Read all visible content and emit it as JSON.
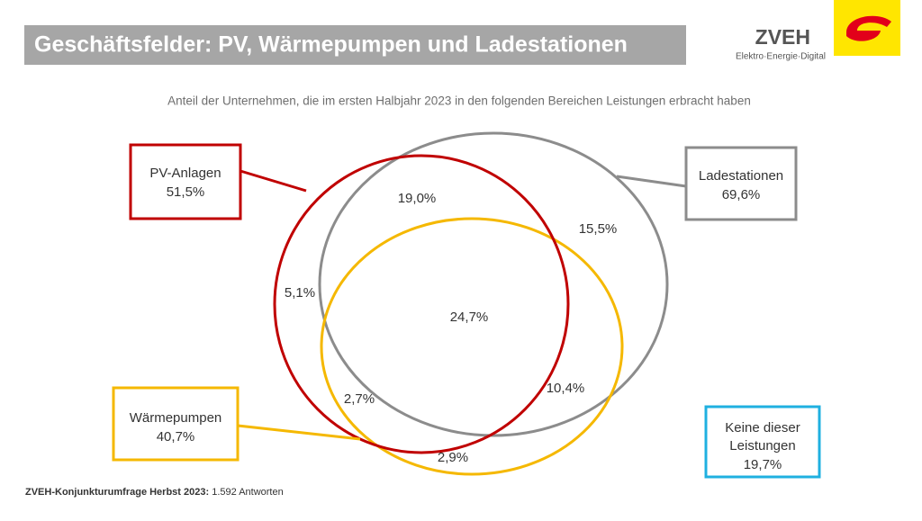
{
  "header": {
    "title": "Geschäftsfelder: PV, Wärmepumpen und Ladestationen",
    "logo_name": "ZVEH",
    "logo_tagline": "Elektro·Energie·Digital"
  },
  "subtitle": "Anteil der Unternehmen, die im ersten Halbjahr 2023 in den folgenden Bereichen Leistungen erbracht haben",
  "sets": [
    {
      "label": "PV-Anlagen",
      "value": "51,5%"
    },
    {
      "label": "Ladestationen",
      "value": "69,6%"
    },
    {
      "label": "Wärmepumpen",
      "value": "40,7%"
    }
  ],
  "none_box": {
    "label_lines": [
      "Keine dieser",
      "Leistungen"
    ],
    "value": "19,7%"
  },
  "regions": [
    "19,0%",
    "15,5%",
    "5,1%",
    "24,7%",
    "2,7%",
    "10,4%",
    "2,9%"
  ],
  "footer": {
    "source_label": "ZVEH-Konjunkturumfrage Herbst 2023:",
    "source_value": "1.592 Antworten"
  }
}
